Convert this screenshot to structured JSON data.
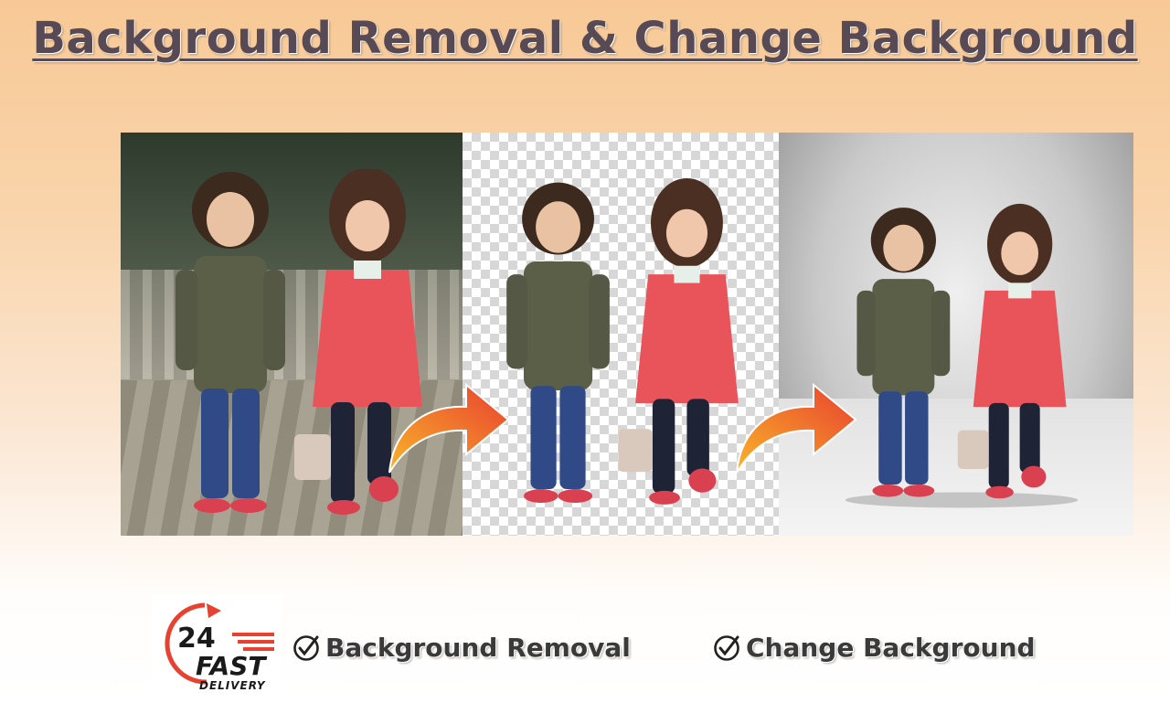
{
  "title": "Background Removal & Change Background",
  "features": [
    {
      "label": "Background Removal",
      "icon": "check-circle-icon"
    },
    {
      "label": "Change Background",
      "icon": "check-circle-icon"
    }
  ],
  "logo": {
    "number": "24",
    "word1": "FAST",
    "word2": "DELIVERY",
    "accent_color": "#e8412f",
    "text_color": "#1a1a1a"
  },
  "panels": [
    {
      "name": "original-photo"
    },
    {
      "name": "transparent-cutout"
    },
    {
      "name": "new-background"
    }
  ],
  "colors": {
    "title": "#584a55",
    "arrow_start": "#f9b42a",
    "arrow_end": "#e8412f",
    "jacket_green": "#5c5f48",
    "coat_red": "#e8545a"
  }
}
